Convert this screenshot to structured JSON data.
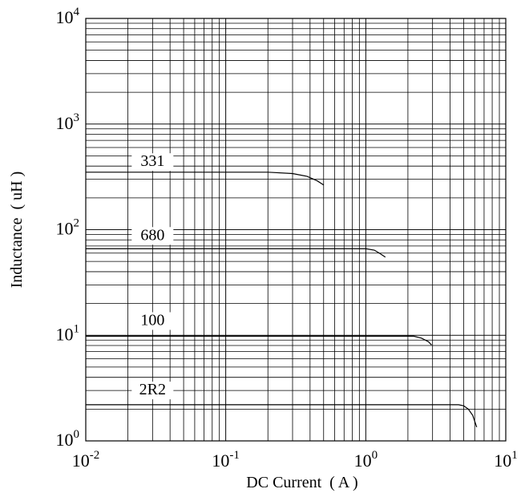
{
  "chart_data": {
    "type": "line",
    "title": "",
    "xlabel": "DC Current  ( A )",
    "ylabel": "Inductance  ( uH )",
    "xscale": "log",
    "yscale": "log",
    "xlim": [
      0.01,
      10
    ],
    "ylim": [
      1,
      10000
    ],
    "grid": true,
    "x_ticks": [
      {
        "base": "10",
        "exp": "-2",
        "value": 0.01
      },
      {
        "base": "10",
        "exp": "-1",
        "value": 0.1
      },
      {
        "base": "10",
        "exp": "0",
        "value": 1
      },
      {
        "base": "10",
        "exp": "1",
        "value": 10
      }
    ],
    "y_ticks": [
      {
        "base": "10",
        "exp": "0",
        "value": 1
      },
      {
        "base": "10",
        "exp": "1",
        "value": 10
      },
      {
        "base": "10",
        "exp": "2",
        "value": 100
      },
      {
        "base": "10",
        "exp": "3",
        "value": 1000
      },
      {
        "base": "10",
        "exp": "4",
        "value": 10000
      }
    ],
    "series": [
      {
        "name": "331",
        "label_at": [
          0.03,
          400
        ],
        "x": [
          0.01,
          0.2,
          0.3,
          0.38,
          0.45,
          0.5
        ],
        "y": [
          350,
          350,
          340,
          320,
          290,
          265
        ]
      },
      {
        "name": "680",
        "label_at": [
          0.03,
          80
        ],
        "x": [
          0.01,
          1.0,
          1.15,
          1.25,
          1.38
        ],
        "y": [
          66,
          66,
          64,
          60,
          55
        ]
      },
      {
        "name": "100",
        "label_at": [
          0.03,
          12.5
        ],
        "x": [
          0.01,
          2.2,
          2.5,
          2.8,
          2.95
        ],
        "y": [
          9.8,
          9.8,
          9.4,
          8.7,
          8.1
        ]
      },
      {
        "name": "2R2",
        "label_at": [
          0.03,
          2.75
        ],
        "x": [
          0.01,
          4.6,
          5.0,
          5.4,
          5.8,
          6.2
        ],
        "y": [
          2.2,
          2.2,
          2.15,
          2.0,
          1.75,
          1.35
        ]
      }
    ]
  }
}
